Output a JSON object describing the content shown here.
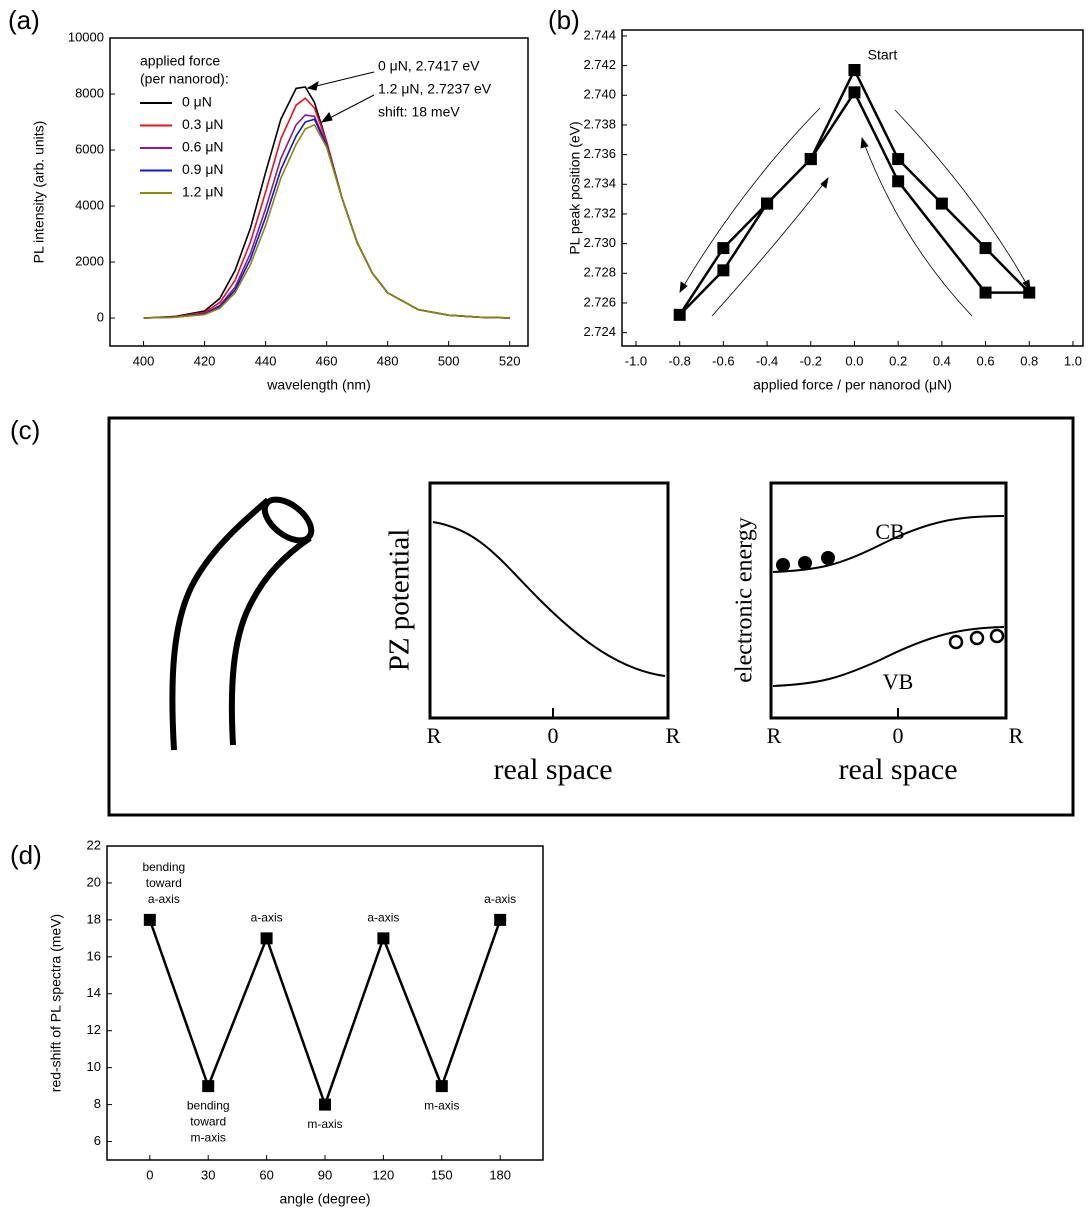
{
  "panel_labels": [
    "(a)",
    "(b)",
    "(c)",
    "(d)"
  ],
  "chart_data": [
    {
      "type": "line",
      "x_label": "wavelength (nm)",
      "y_label": "PL intensity (arb. units)",
      "x": [
        400,
        410,
        420,
        425,
        430,
        435,
        440,
        445,
        450,
        453,
        456,
        460,
        465,
        470,
        475,
        480,
        490,
        500,
        510,
        520
      ],
      "series": [
        {
          "name": "0 μN",
          "color": "#000000",
          "values": [
            0,
            50,
            250,
            700,
            1700,
            3200,
            5200,
            7100,
            8200,
            8250,
            7700,
            6300,
            4300,
            2700,
            1600,
            900,
            300,
            100,
            30,
            0
          ]
        },
        {
          "name": "0.3 μN",
          "color": "#e8141c",
          "values": [
            0,
            40,
            200,
            550,
            1350,
            2700,
            4500,
            6400,
            7600,
            7850,
            7500,
            6300,
            4300,
            2700,
            1600,
            900,
            300,
            100,
            30,
            0
          ]
        },
        {
          "name": "0.6 μN",
          "color": "#8b1a8b",
          "values": [
            0,
            30,
            160,
            450,
            1100,
            2300,
            3900,
            5700,
            6900,
            7250,
            7200,
            6200,
            4300,
            2700,
            1600,
            900,
            300,
            100,
            30,
            0
          ]
        },
        {
          "name": "0.9 μN",
          "color": "#1414e0",
          "values": [
            0,
            30,
            140,
            400,
            1000,
            2100,
            3600,
            5300,
            6500,
            7000,
            7100,
            6150,
            4300,
            2700,
            1600,
            900,
            300,
            100,
            30,
            0
          ]
        },
        {
          "name": "1.2 μN",
          "color": "#8b8b00",
          "values": [
            0,
            25,
            120,
            350,
            900,
            1900,
            3300,
            5000,
            6200,
            6750,
            6900,
            6100,
            4300,
            2700,
            1600,
            900,
            300,
            100,
            30,
            0
          ]
        }
      ],
      "xlim": [
        389,
        526
      ],
      "ylim": [
        -1000,
        10000
      ],
      "xticks": [
        400,
        420,
        440,
        460,
        480,
        500,
        520
      ],
      "yticks": [
        0,
        2000,
        4000,
        6000,
        8000,
        10000
      ],
      "legend": "upper left",
      "legend_title": [
        "applied force",
        "(per nanorod):"
      ],
      "annotations": [
        "0 μN, 2.7417 eV",
        "1.2 μN, 2.7237 eV",
        "shift: 18 meV"
      ]
    },
    {
      "type": "line",
      "x_label": "applied force / per nanorod (μN)",
      "y_label": "PL peak position (eV)",
      "x": [
        0,
        0.2,
        0.4,
        0.6,
        0.8,
        0.6,
        0.2,
        0,
        -0.2,
        -0.4,
        -0.6,
        -0.8,
        -0.6,
        -0.4,
        -0.2,
        0
      ],
      "values": [
        2.7417,
        2.7357,
        2.7327,
        2.7297,
        2.7267,
        2.7267,
        2.7342,
        2.7402,
        2.7357,
        2.7327,
        2.7297,
        2.7252,
        2.7282,
        2.7327,
        2.7357,
        2.7417
      ],
      "color": "#000000",
      "marker": "square",
      "xlim": [
        -1.064,
        1.046
      ],
      "ylim": [
        2.7231,
        2.7444
      ],
      "xticks": [
        {
          "value": -1,
          "label": "-1.0"
        },
        -0.8,
        -0.6,
        -0.4,
        -0.2,
        {
          "value": 0,
          "label": "0.0"
        },
        0.2,
        0.4,
        0.6,
        0.8,
        {
          "value": 1,
          "label": "1.0"
        }
      ],
      "yticks": [
        2.724,
        2.726,
        2.728,
        {
          "value": 2.73,
          "label": "2.730"
        },
        2.732,
        2.734,
        2.736,
        2.738,
        {
          "value": 2.74,
          "label": "2.740"
        },
        2.742,
        2.744
      ],
      "annotations": [
        "Start"
      ]
    },
    {
      "type": "line",
      "x_label": "angle (degree)",
      "y_label": "red-shift of PL spectra (meV)",
      "x": [
        0,
        30,
        60,
        90,
        120,
        150,
        180
      ],
      "values": [
        18,
        9,
        17,
        8,
        17,
        9,
        18
      ],
      "color": "#000000",
      "marker": "square",
      "xlim": [
        -22,
        202
      ],
      "ylim": [
        5,
        22
      ],
      "xticks": [
        0,
        30,
        60,
        90,
        120,
        150,
        180
      ],
      "yticks": [
        6,
        8,
        10,
        12,
        14,
        16,
        18,
        20,
        22
      ],
      "point_labels": [
        [
          "bending",
          "toward",
          "a-axis"
        ],
        [
          "bending",
          "toward",
          "m-axis"
        ],
        [
          "a-axis"
        ],
        [
          "m-axis"
        ],
        [
          "a-axis"
        ],
        [
          "m-axis"
        ],
        [
          "a-axis"
        ]
      ]
    }
  ],
  "diagram": {
    "left_plot": {
      "y_label": "PZ potential",
      "x_ticks": [
        "R",
        "0",
        "R"
      ],
      "x_label": "real space"
    },
    "right_plot": {
      "y_label": "electronic energy",
      "bands": [
        "CB",
        "VB"
      ],
      "x_ticks": [
        "R",
        "0",
        "R"
      ],
      "x_label": "real space"
    }
  }
}
